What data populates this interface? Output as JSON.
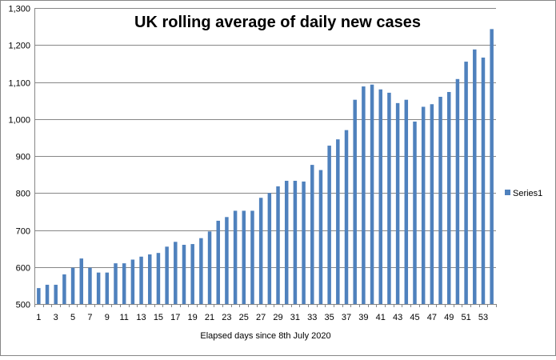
{
  "chart_data": {
    "type": "bar",
    "title": "UK rolling average of  daily new cases",
    "xlabel": "Elapsed days since 8th July 2020",
    "ylabel": "",
    "ylim": [
      500,
      1300
    ],
    "yticks": [
      500,
      600,
      700,
      800,
      900,
      1000,
      1100,
      1200,
      1300
    ],
    "ytick_labels": [
      "500",
      "600",
      "700",
      "800",
      "900",
      "1,000",
      "1,100",
      "1,200",
      "1,300"
    ],
    "xtick_labels": [
      "1",
      "3",
      "5",
      "7",
      "9",
      "11",
      "13",
      "15",
      "17",
      "19",
      "21",
      "23",
      "25",
      "27",
      "29",
      "31",
      "33",
      "35",
      "37",
      "39",
      "41",
      "43",
      "45",
      "47",
      "49",
      "51",
      "53"
    ],
    "grid": "horizontal",
    "legend_position": "right",
    "categories": [
      1,
      2,
      3,
      4,
      5,
      6,
      7,
      8,
      9,
      10,
      11,
      12,
      13,
      14,
      15,
      16,
      17,
      18,
      19,
      20,
      21,
      22,
      23,
      24,
      25,
      26,
      27,
      28,
      29,
      30,
      31,
      32,
      33,
      34,
      35,
      36,
      37,
      38,
      39,
      40,
      41,
      42,
      43,
      44,
      45,
      46,
      47,
      48,
      49,
      50,
      51,
      52,
      53,
      54
    ],
    "series": [
      {
        "name": "Series1",
        "color": "#4f81bd",
        "values": [
          543,
          552,
          552,
          580,
          598,
          623,
          598,
          585,
          585,
          610,
          610,
          620,
          628,
          634,
          638,
          655,
          668,
          660,
          662,
          678,
          696,
          725,
          735,
          752,
          752,
          752,
          787,
          800,
          818,
          833,
          833,
          831,
          876,
          862,
          928,
          945,
          970,
          1052,
          1088,
          1093,
          1080,
          1071,
          1043,
          1052,
          993,
          1033,
          1040,
          1060,
          1073,
          1108,
          1155,
          1188,
          1166,
          1243
        ]
      }
    ]
  }
}
